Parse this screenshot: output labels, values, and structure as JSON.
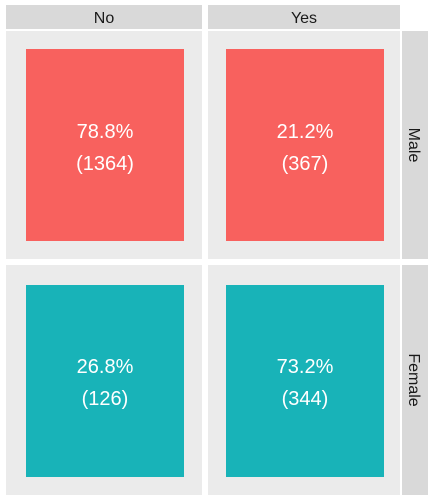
{
  "chart_data": {
    "type": "table",
    "columns": [
      "No",
      "Yes"
    ],
    "rows": [
      "Male",
      "Female"
    ],
    "row_colors": [
      "#f8615e",
      "#18b3b8"
    ],
    "cells": [
      [
        {
          "percent_label": "78.8%",
          "count_label": "(1364)",
          "percent": 78.8,
          "count": 1364
        },
        {
          "percent_label": "21.2%",
          "count_label": "(367)",
          "percent": 21.2,
          "count": 367
        }
      ],
      [
        {
          "percent_label": "26.8%",
          "count_label": "(126)",
          "percent": 26.8,
          "count": 126
        },
        {
          "percent_label": "73.2%",
          "count_label": "(344)",
          "percent": 73.2,
          "count": 344
        }
      ]
    ]
  }
}
